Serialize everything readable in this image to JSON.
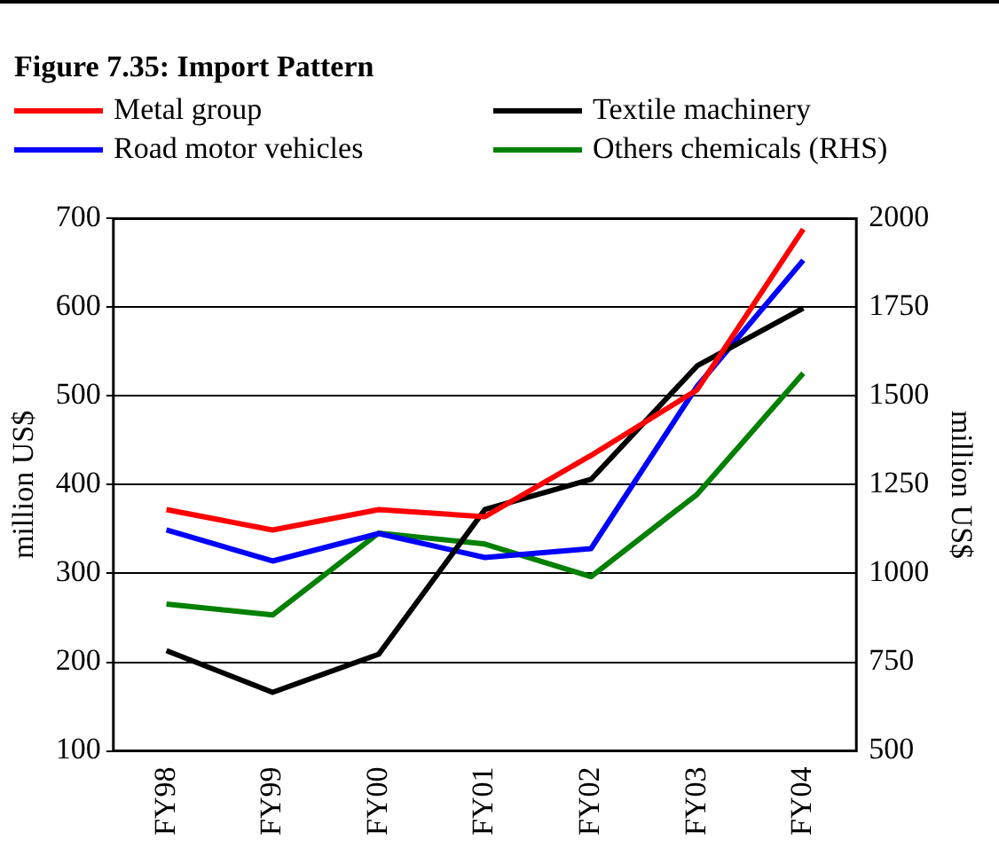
{
  "chart_data": {
    "type": "line",
    "title": "Figure 7.35: Import Pattern",
    "ylabel": "million US$",
    "y2label": "million US$",
    "categories": [
      "FY98",
      "FY99",
      "FY00",
      "FY01",
      "FY02",
      "FY03",
      "FY04"
    ],
    "series": [
      {
        "name": "Metal group",
        "color": "#ff0000",
        "values": [
          372,
          349,
          372,
          364,
          433,
          507,
          688
        ]
      },
      {
        "name": "Textile machinery",
        "color": "#000000",
        "values": [
          213,
          166,
          209,
          372,
          406,
          534,
          599
        ]
      },
      {
        "name": "Road motor vehicles",
        "color": "#0000ff",
        "values": [
          349,
          314,
          345,
          318,
          328,
          511,
          653
        ]
      },
      {
        "name": "Others chemicals (RHS)",
        "color": "#008000",
        "axis": "y2",
        "values": [
          914,
          883,
          1114,
          1083,
          991,
          1223,
          1564
        ]
      }
    ],
    "ylim": [
      100,
      700
    ],
    "yticks": [
      100,
      200,
      300,
      400,
      500,
      600,
      700
    ],
    "y2lim": [
      500,
      2000
    ],
    "y2ticks": [
      500,
      750,
      1000,
      1250,
      1500,
      1750,
      2000
    ],
    "grid": "y",
    "legend": "top",
    "marker": "none",
    "line_style": "solid"
  }
}
